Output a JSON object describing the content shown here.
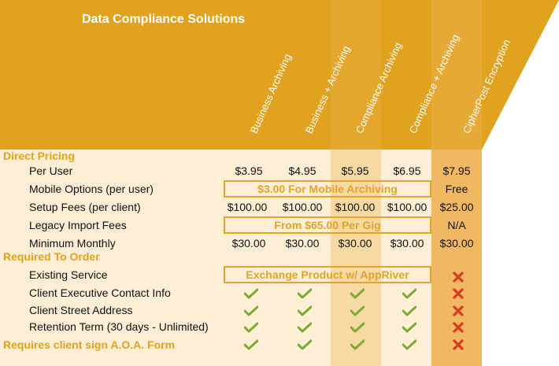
{
  "title": "Data Compliance Solutions",
  "columns": [
    "Business Archiving",
    "Business + Archiving",
    "Compliance Archiving",
    "Compliance + Archiving",
    "CipherPost Encryption"
  ],
  "sections": {
    "direct_pricing": "Direct Pricing",
    "required_to_order": "Required To Order",
    "aoa_form": "Requires client sign A.O.A. Form"
  },
  "rows": {
    "per_user": {
      "label": "Per User",
      "values": [
        "$3.95",
        "$4.95",
        "$5.95",
        "$6.95",
        "$7.95"
      ]
    },
    "mobile_options": {
      "label": "Mobile Options (per user)",
      "span_text": "$3.00 For Mobile Archiving",
      "last": "Free"
    },
    "setup_fees": {
      "label": "Setup Fees (per client)",
      "values": [
        "$100.00",
        "$100.00",
        "$100.00",
        "$100.00",
        "$25.00"
      ]
    },
    "legacy_import": {
      "label": "Legacy Import Fees",
      "span_text": "From $65.00 Per Gig",
      "last": "N/A"
    },
    "minimum_monthly": {
      "label": "Minimum Monthly",
      "values": [
        "$30.00",
        "$30.00",
        "$30.00",
        "$30.00",
        "$30.00"
      ]
    },
    "existing_service": {
      "label": "Existing Service",
      "span_text": "Exchange Product w/ AppRiver"
    },
    "client_contact": {
      "label": "Client Executive Contact Info"
    },
    "street_address": {
      "label": "Client Street Address"
    },
    "retention_term": {
      "label": "Retention Term (30 days - Unlimited)"
    }
  },
  "icons": {
    "check": "checkmark-icon",
    "cross": "cross-icon"
  },
  "colors": {
    "header": "#e0a21f",
    "accent": "#e3a22a",
    "body": "#fdeed5",
    "shade_mid": "#f6d9a3",
    "shade_right": "#f0b862",
    "check": "#7cab33",
    "cross": "#d83a1f"
  }
}
